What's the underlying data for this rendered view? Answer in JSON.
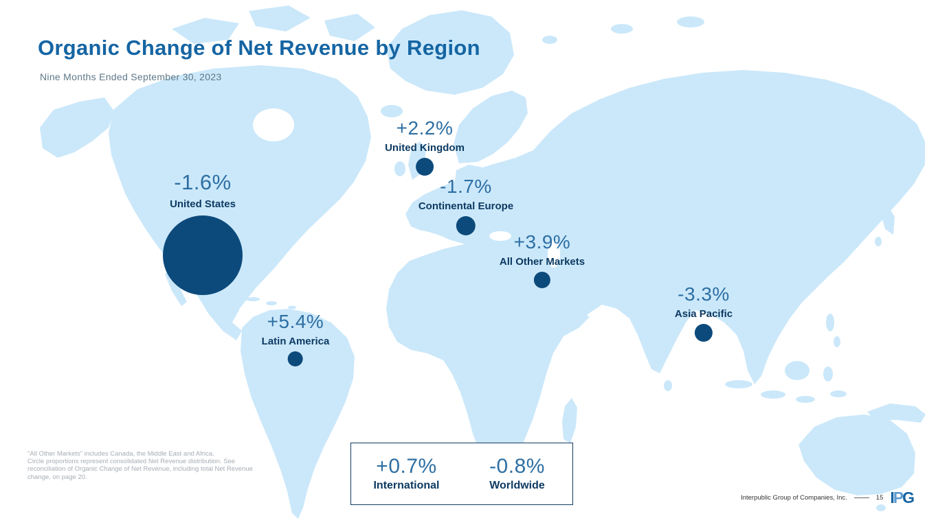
{
  "slide": {
    "title": "Organic Change of Net Revenue by Region",
    "subtitle": "Nine Months Ended September 30, 2023"
  },
  "regions": [
    {
      "name": "United States",
      "value": "-1.6%"
    },
    {
      "name": "United Kingdom",
      "value": "+2.2%"
    },
    {
      "name": "Continental Europe",
      "value": "-1.7%"
    },
    {
      "name": "All Other Markets",
      "value": "+3.9%"
    },
    {
      "name": "Latin America",
      "value": "+5.4%"
    },
    {
      "name": "Asia Pacific",
      "value": "-3.3%"
    }
  ],
  "summary": {
    "items": [
      {
        "name": "International",
        "value": "+0.7%"
      },
      {
        "name": "Worldwide",
        "value": "-0.8%"
      }
    ]
  },
  "footnote_lines": [
    "\"All Other Markets\" includes Canada, the Middle East and Africa.",
    "Circle proportions represent consolidated Net Revenue distribution. See",
    "reconciliation of Organic Change of Net Revenue, including total Net Revenue",
    "change, on page 20."
  ],
  "footer": {
    "company": "Interpublic Group of Companies, Inc.",
    "page_number": "15",
    "logo_letters": [
      "I",
      "P",
      "G"
    ]
  },
  "colors": {
    "title_blue": "#1565a3",
    "value_blue": "#2e6fa3",
    "label_navy": "#0d3a62",
    "bubble_navy": "#0d4a7c",
    "map_light_blue": "#cbe8fa"
  },
  "chart_data": {
    "type": "scatter",
    "variant": "bubble-world-map",
    "title": "Organic Change of Net Revenue by Region",
    "subtitle": "Nine Months Ended September 30, 2023",
    "unit": "percent organic change of net revenue",
    "points": [
      {
        "region": "United States",
        "organic_change_pct": -1.6,
        "bubble_radius_px": 58
      },
      {
        "region": "United Kingdom",
        "organic_change_pct": 2.2,
        "bubble_radius_px": 13
      },
      {
        "region": "Continental Europe",
        "organic_change_pct": -1.7,
        "bubble_radius_px": 14
      },
      {
        "region": "All Other Markets",
        "organic_change_pct": 3.9,
        "bubble_radius_px": 12
      },
      {
        "region": "Latin America",
        "organic_change_pct": 5.4,
        "bubble_radius_px": 11
      },
      {
        "region": "Asia Pacific",
        "organic_change_pct": -3.3,
        "bubble_radius_px": 13
      }
    ],
    "totals": [
      {
        "label": "International",
        "organic_change_pct": 0.7
      },
      {
        "label": "Worldwide",
        "organic_change_pct": -0.8
      }
    ],
    "bubble_size_meaning": "Circle proportions represent consolidated Net Revenue distribution",
    "legend": "none",
    "background": "stylized light-blue world map on white"
  }
}
